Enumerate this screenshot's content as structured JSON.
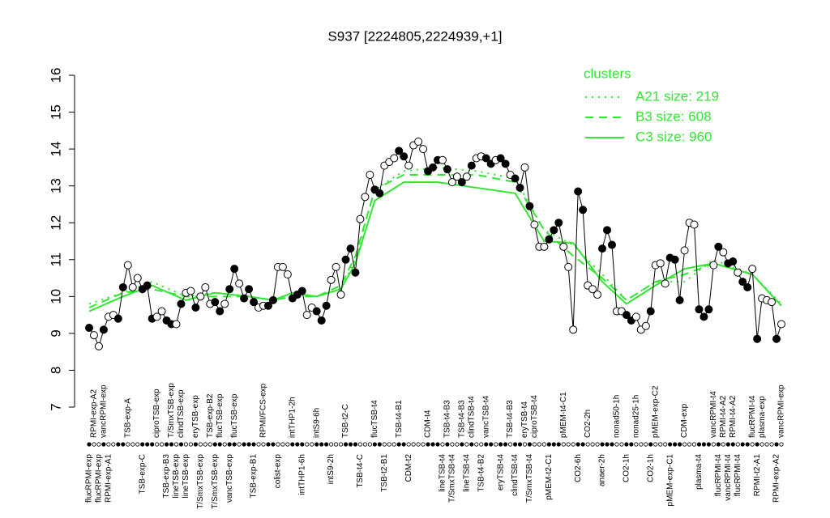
{
  "chart_data": {
    "type": "line",
    "title": "S937 [2224805,2224939,+1]",
    "ylim": [
      7,
      16
    ],
    "yticks": [
      7,
      8,
      9,
      10,
      11,
      12,
      13,
      14,
      15,
      16
    ],
    "categories": [
      "flucRPMI-exp",
      "RPMI-exp-A2",
      "flucRPMI-exp",
      "vancRPMI-exp",
      "RPMI-exp-A1",
      null,
      null,
      null,
      "TSB-exp-A",
      null,
      null,
      "TSB-exp-C",
      null,
      null,
      "ciproTSB-exp",
      null,
      "TSB-exp-B3",
      "T/SmxTSB-exp",
      "lineTSB-exp",
      "clindTSB-exp",
      "lineTSB-exp",
      null,
      "eryTSB-exp",
      "T/SmxTSB-exp",
      null,
      "TSB-exp-B2",
      "T/SmxTSB-exp",
      "flucTSB-exp",
      null,
      "vancTSB-exp",
      "flucTSB-exp",
      null,
      null,
      null,
      "TSB-exp-B1",
      null,
      "RPMI/FCS-exp",
      null,
      null,
      "colist-exp",
      null,
      null,
      "intTHP1-2h",
      null,
      "intTHP1-6h",
      null,
      null,
      "intS9-6h",
      null,
      null,
      "intS9-2h",
      null,
      null,
      "TSB-t2-C",
      null,
      null,
      "TSB-t4-C",
      null,
      null,
      "flucTSB-t4",
      null,
      "TSB-t2-B1",
      null,
      null,
      "TSB-t4-B1",
      null,
      "CDM-t2",
      null,
      null,
      null,
      "CDM-t4",
      null,
      null,
      "lineTSB-t4",
      "TSB-t4-B3",
      "T/SmxTSB-t4",
      null,
      "TSB-t4-B3",
      "lineTSB-t4",
      "clindTSB-t4",
      null,
      "TSB-t4-B2",
      "vancTSB-t4",
      null,
      null,
      "eryTSB-t4",
      null,
      "TSB-t4-B3",
      "clindTSB-t4",
      null,
      "eryTSB-t4",
      "T/SmxTSB-t4",
      "ciproTSB-t4",
      null,
      null,
      "pMEM-t2-C1",
      null,
      null,
      "pMEM-t4-C1",
      null,
      null,
      "CO2-6h",
      null,
      "CO2-2h",
      null,
      null,
      "anaer-2h",
      null,
      null,
      "nonad50-1h",
      null,
      "CO2-1h",
      null,
      "nonad25-1h",
      null,
      null,
      "CO2-1h",
      "pMEM-exp-C2",
      null,
      null,
      "pMEM-exp-C1",
      null,
      null,
      "CDM-exp",
      null,
      null,
      "plasma-t4",
      null,
      null,
      "vancRPMI-t4",
      "flucRPMI-t4",
      "RPMI-t4-A2",
      "vancRPMI-t4",
      "RPMI-t4-A2",
      "flucRPMI-t4",
      null,
      null,
      "flucRPMI-t4",
      "RPMI-t2-A1",
      "plasma-exp",
      null,
      null,
      "RPMI-exp-A2",
      "vancRPMI-exp"
    ],
    "values": [
      9.15,
      8.95,
      8.65,
      9.1,
      9.45,
      9.5,
      9.4,
      10.25,
      10.85,
      10.25,
      10.5,
      10.2,
      10.3,
      9.4,
      9.45,
      9.6,
      9.35,
      9.25,
      9.25,
      9.8,
      10.1,
      10.15,
      9.7,
      10.0,
      10.25,
      9.8,
      9.85,
      9.6,
      9.8,
      10.2,
      10.75,
      10.35,
      9.95,
      10.2,
      9.85,
      9.7,
      9.75,
      9.75,
      9.9,
      10.8,
      10.8,
      10.6,
      9.95,
      10.05,
      10.15,
      9.5,
      9.7,
      9.6,
      9.35,
      9.75,
      10.45,
      10.8,
      10.05,
      11.0,
      11.3,
      10.65,
      12.1,
      12.7,
      13.3,
      12.9,
      12.8,
      13.55,
      13.65,
      13.75,
      13.95,
      13.8,
      13.55,
      14.1,
      14.2,
      14.0,
      13.4,
      13.5,
      13.7,
      13.7,
      13.45,
      13.1,
      13.25,
      13.1,
      13.25,
      13.55,
      13.75,
      13.8,
      13.75,
      13.6,
      13.7,
      13.75,
      13.6,
      13.3,
      13.2,
      12.95,
      13.5,
      12.45,
      11.95,
      11.35,
      11.35,
      11.55,
      11.8,
      12.0,
      11.35,
      10.8,
      9.1,
      12.85,
      12.35,
      10.3,
      10.2,
      10.05,
      11.3,
      11.8,
      11.4,
      9.6,
      9.6,
      9.5,
      9.35,
      9.45,
      9.1,
      9.2,
      9.6,
      10.85,
      10.9,
      10.35,
      11.05,
      11.0,
      9.9,
      11.25,
      12.0,
      11.95,
      9.65,
      9.45,
      9.65,
      10.85,
      11.35,
      11.2,
      10.9,
      10.95,
      10.65,
      10.4,
      10.25,
      10.75,
      8.85,
      9.95,
      9.9,
      9.85,
      8.85,
      9.25
    ],
    "filled": [
      1,
      0,
      0,
      1,
      0,
      0,
      1,
      1,
      0,
      0,
      0,
      1,
      1,
      1,
      0,
      0,
      1,
      1,
      0,
      1,
      0,
      0,
      1,
      0,
      0,
      0,
      1,
      1,
      0,
      1,
      1,
      0,
      1,
      1,
      1,
      0,
      0,
      1,
      1,
      0,
      0,
      0,
      1,
      1,
      1,
      0,
      0,
      1,
      1,
      1,
      0,
      0,
      0,
      1,
      1,
      1,
      0,
      0,
      0,
      1,
      1,
      0,
      0,
      0,
      1,
      1,
      0,
      0,
      0,
      0,
      1,
      1,
      1,
      0,
      1,
      0,
      0,
      1,
      0,
      1,
      0,
      0,
      1,
      1,
      0,
      1,
      1,
      0,
      1,
      1,
      0,
      1,
      0,
      0,
      0,
      1,
      1,
      1,
      0,
      0,
      0,
      1,
      1,
      0,
      0,
      0,
      1,
      1,
      1,
      0,
      0,
      1,
      1,
      0,
      0,
      0,
      1,
      0,
      0,
      0,
      1,
      1,
      1,
      0,
      0,
      0,
      1,
      1,
      1,
      0,
      1,
      0,
      1,
      1,
      0,
      1,
      1,
      0,
      1,
      0,
      0,
      0,
      1,
      0
    ],
    "color": "#000000",
    "legend_title": "clusters",
    "clusters": {
      "x": [
        0,
        7,
        13,
        20,
        26,
        33,
        38,
        42,
        47,
        52,
        55,
        59,
        65,
        72,
        80,
        88,
        94,
        100,
        106,
        111,
        117,
        123,
        129,
        137,
        143
      ],
      "series": [
        {
          "name": "A21 size: 219",
          "color": "#33e633",
          "dash": "dotted",
          "values": [
            9.8,
            10.1,
            10.4,
            10.0,
            10.1,
            10.0,
            9.9,
            10.1,
            10.0,
            10.2,
            11.0,
            12.9,
            13.4,
            13.5,
            13.4,
            13.2,
            11.8,
            11.4,
            10.6,
            9.9,
            10.4,
            10.4,
            11.0,
            10.6,
            9.8
          ]
        },
        {
          "name": "B3 size: 608",
          "color": "#33e633",
          "dash": "dashed",
          "values": [
            9.7,
            10.1,
            10.2,
            10.0,
            10.0,
            10.0,
            9.9,
            10.0,
            10.0,
            10.3,
            11.1,
            12.9,
            13.3,
            13.3,
            13.3,
            13.1,
            11.8,
            11.1,
            10.5,
            9.9,
            10.4,
            10.6,
            10.9,
            10.6,
            9.75
          ]
        },
        {
          "name": "C3 size: 960",
          "color": "#33e633",
          "dash": "solid",
          "values": [
            9.6,
            10.0,
            10.3,
            9.9,
            10.1,
            10.0,
            9.9,
            10.1,
            10.0,
            10.2,
            10.9,
            12.6,
            13.1,
            13.1,
            12.95,
            12.8,
            11.5,
            11.45,
            10.4,
            9.8,
            10.3,
            10.75,
            10.9,
            10.6,
            9.75
          ]
        }
      ]
    },
    "legend": "top-right"
  }
}
